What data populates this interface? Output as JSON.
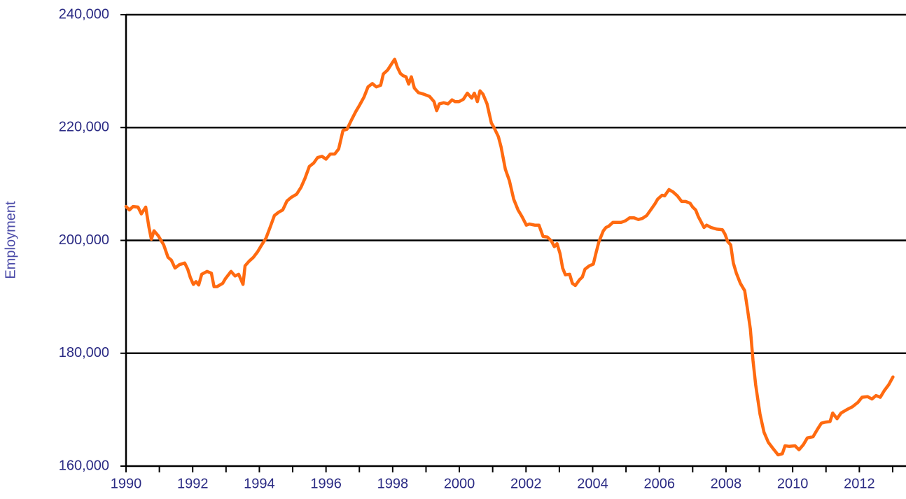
{
  "chart_data": {
    "type": "line",
    "ylabel": "Employment",
    "xlim": [
      1990,
      2013.4
    ],
    "ylim": [
      160000,
      240000
    ],
    "xticks": [
      1990,
      1992,
      1994,
      1996,
      1998,
      2000,
      2002,
      2004,
      2006,
      2008,
      2010,
      2012
    ],
    "xminorticks": [
      1991,
      1993,
      1995,
      1997,
      1999,
      2001,
      2003,
      2005,
      2007,
      2009,
      2011,
      2013
    ],
    "yticks": [
      {
        "value": 160000,
        "label": "160,000"
      },
      {
        "value": 180000,
        "label": "180,000"
      },
      {
        "value": 200000,
        "label": "200,000"
      },
      {
        "value": 220000,
        "label": "220,000"
      },
      {
        "value": 240000,
        "label": "240,000"
      }
    ],
    "grid": true,
    "series": [
      {
        "name": "Employment",
        "color": "#ff6a10",
        "x": [
          1990.0,
          1990.1,
          1990.21,
          1990.36,
          1990.46,
          1990.59,
          1990.69,
          1990.76,
          1990.84,
          1990.97,
          1991.13,
          1991.26,
          1991.36,
          1991.47,
          1991.6,
          1991.76,
          1991.85,
          1991.93,
          1992.02,
          1992.1,
          1992.18,
          1992.27,
          1992.43,
          1992.56,
          1992.64,
          1992.73,
          1992.9,
          1992.98,
          1993.15,
          1993.27,
          1993.38,
          1993.51,
          1993.57,
          1993.69,
          1993.82,
          1993.95,
          1994.07,
          1994.2,
          1994.32,
          1994.45,
          1994.58,
          1994.7,
          1994.83,
          1994.95,
          1995.12,
          1995.25,
          1995.37,
          1995.5,
          1995.63,
          1995.75,
          1995.88,
          1996.0,
          1996.13,
          1996.26,
          1996.38,
          1996.51,
          1996.63,
          1996.76,
          1996.89,
          1997.01,
          1997.14,
          1997.26,
          1997.39,
          1997.51,
          1997.64,
          1997.72,
          1997.85,
          1997.98,
          1998.06,
          1998.14,
          1998.23,
          1998.31,
          1998.4,
          1998.48,
          1998.56,
          1998.65,
          1998.77,
          1998.94,
          1999.11,
          1999.24,
          1999.32,
          1999.4,
          1999.53,
          1999.66,
          1999.78,
          1999.87,
          1999.99,
          2000.12,
          2000.24,
          2000.37,
          2000.45,
          2000.54,
          2000.62,
          2000.71,
          2000.83,
          2000.96,
          2001.04,
          2001.17,
          2001.25,
          2001.38,
          2001.5,
          2001.63,
          2001.76,
          2001.88,
          2002.01,
          2002.1,
          2002.26,
          2002.39,
          2002.51,
          2002.64,
          2002.76,
          2002.85,
          2002.93,
          2003.02,
          2003.1,
          2003.18,
          2003.31,
          2003.39,
          2003.48,
          2003.6,
          2003.69,
          2003.77,
          2003.9,
          2004.02,
          2004.11,
          2004.19,
          2004.32,
          2004.4,
          2004.48,
          2004.61,
          2004.74,
          2004.86,
          2004.99,
          2005.11,
          2005.24,
          2005.37,
          2005.49,
          2005.62,
          2005.74,
          2005.87,
          2005.95,
          2006.08,
          2006.16,
          2006.29,
          2006.41,
          2006.54,
          2006.67,
          2006.79,
          2006.92,
          2007.0,
          2007.09,
          2007.17,
          2007.26,
          2007.34,
          2007.42,
          2007.55,
          2007.72,
          2007.89,
          2007.97,
          2008.05,
          2008.14,
          2008.22,
          2008.31,
          2008.43,
          2008.56,
          2008.64,
          2008.73,
          2008.81,
          2008.89,
          2009.02,
          2009.14,
          2009.27,
          2009.4,
          2009.48,
          2009.56,
          2009.69,
          2009.77,
          2009.9,
          2010.07,
          2010.19,
          2010.32,
          2010.44,
          2010.61,
          2010.74,
          2010.86,
          2010.99,
          2011.12,
          2011.2,
          2011.33,
          2011.45,
          2011.62,
          2011.79,
          2011.96,
          2012.08,
          2012.25,
          2012.38,
          2012.5,
          2012.63,
          2012.75,
          2012.88,
          2013.01
        ],
        "values": [
          206000,
          205400,
          206000,
          205900,
          204700,
          205900,
          202300,
          200200,
          201700,
          200800,
          199200,
          197000,
          196500,
          195100,
          195700,
          196000,
          194900,
          193400,
          192200,
          192700,
          192100,
          194000,
          194500,
          194200,
          191800,
          191800,
          192400,
          193200,
          194500,
          193700,
          194000,
          192200,
          195500,
          196300,
          197000,
          198000,
          199200,
          200400,
          202300,
          204400,
          205000,
          205400,
          207000,
          207600,
          208200,
          209400,
          211000,
          213100,
          213700,
          214700,
          214900,
          214400,
          215300,
          215300,
          216200,
          219500,
          219700,
          221300,
          222800,
          224000,
          225400,
          227200,
          227800,
          227200,
          227500,
          229500,
          230200,
          231400,
          232100,
          230700,
          229600,
          229200,
          229000,
          227700,
          229000,
          227000,
          226200,
          225900,
          225500,
          224600,
          223000,
          224200,
          224400,
          224200,
          224900,
          224600,
          224600,
          225000,
          226100,
          225200,
          226100,
          224600,
          226500,
          225900,
          224200,
          220800,
          220000,
          218400,
          216600,
          212600,
          210600,
          207300,
          205400,
          204200,
          202700,
          202900,
          202700,
          202700,
          200700,
          200600,
          199900,
          198900,
          199400,
          197700,
          195100,
          193900,
          194000,
          192400,
          192000,
          193000,
          193500,
          194900,
          195500,
          195800,
          198000,
          199800,
          201700,
          202300,
          202500,
          203200,
          203200,
          203200,
          203500,
          204000,
          204000,
          203700,
          203900,
          204400,
          205400,
          206500,
          207300,
          208000,
          207900,
          209000,
          208600,
          207900,
          206900,
          206900,
          206600,
          205900,
          205400,
          204200,
          203200,
          202300,
          202700,
          202300,
          202000,
          201900,
          201100,
          199800,
          199200,
          196000,
          194200,
          192400,
          191100,
          188000,
          184300,
          178700,
          174400,
          169200,
          166000,
          164200,
          163200,
          162600,
          162000,
          162200,
          163600,
          163500,
          163600,
          162900,
          163800,
          165000,
          165200,
          166500,
          167600,
          167800,
          167900,
          169400,
          168400,
          169400,
          170000,
          170500,
          171300,
          172200,
          172300,
          171900,
          172500,
          172200,
          173400,
          174400,
          175800
        ]
      }
    ]
  }
}
